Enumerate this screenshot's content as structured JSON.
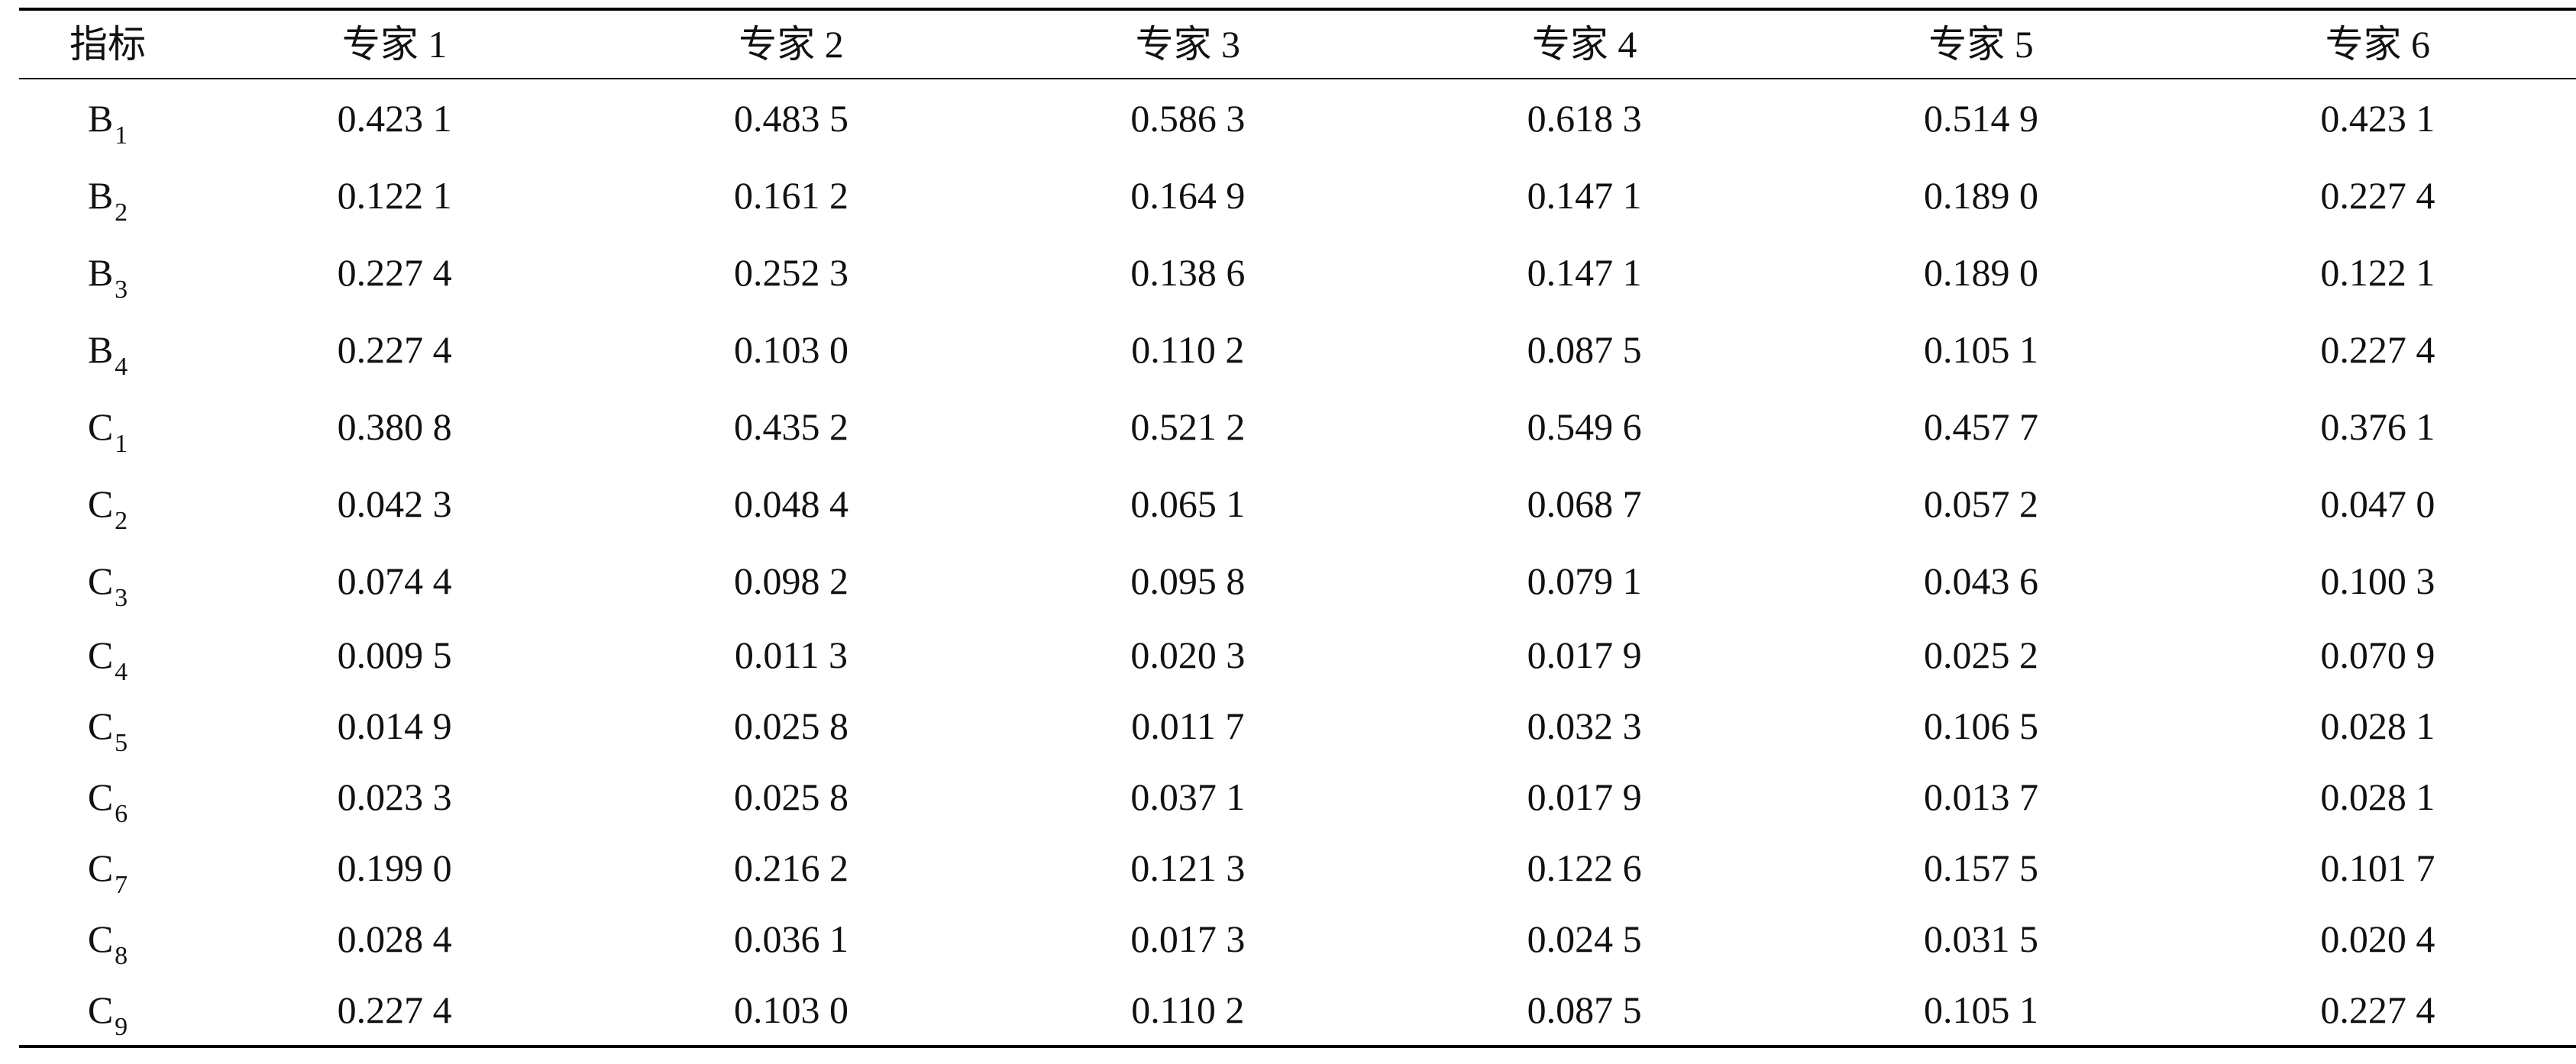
{
  "table": {
    "headers": [
      "指标",
      "专家 1",
      "专家 2",
      "专家 3",
      "专家 4",
      "专家 5",
      "专家 6"
    ],
    "rows": [
      {
        "indicator": "B",
        "sub": "1",
        "values": [
          "0.423 1",
          "0.483 5",
          "0.586 3",
          "0.618 3",
          "0.514 9",
          "0.423 1"
        ]
      },
      {
        "indicator": "B",
        "sub": "2",
        "values": [
          "0.122 1",
          "0.161 2",
          "0.164 9",
          "0.147 1",
          "0.189 0",
          "0.227 4"
        ]
      },
      {
        "indicator": "B",
        "sub": "3",
        "values": [
          "0.227 4",
          "0.252 3",
          "0.138 6",
          "0.147 1",
          "0.189 0",
          "0.122 1"
        ]
      },
      {
        "indicator": "B",
        "sub": "4",
        "values": [
          "0.227 4",
          "0.103 0",
          "0.110 2",
          "0.087 5",
          "0.105 1",
          "0.227 4"
        ]
      },
      {
        "indicator": "C",
        "sub": "1",
        "values": [
          "0.380 8",
          "0.435 2",
          "0.521 2",
          "0.549 6",
          "0.457 7",
          "0.376 1"
        ]
      },
      {
        "indicator": "C",
        "sub": "2",
        "values": [
          "0.042 3",
          "0.048 4",
          "0.065 1",
          "0.068 7",
          "0.057 2",
          "0.047 0"
        ]
      },
      {
        "indicator": "C",
        "sub": "3",
        "values": [
          "0.074 4",
          "0.098 2",
          "0.095 8",
          "0.079 1",
          "0.043 6",
          "0.100 3"
        ]
      },
      {
        "indicator": "C",
        "sub": "4",
        "values": [
          "0.009 5",
          "0.011 3",
          "0.020 3",
          "0.017 9",
          "0.025 2",
          "0.070 9"
        ]
      },
      {
        "indicator": "C",
        "sub": "5",
        "values": [
          "0.014 9",
          "0.025 8",
          "0.011 7",
          "0.032 3",
          "0.106 5",
          "0.028 1"
        ]
      },
      {
        "indicator": "C",
        "sub": "6",
        "values": [
          "0.023 3",
          "0.025 8",
          "0.037 1",
          "0.017 9",
          "0.013 7",
          "0.028 1"
        ]
      },
      {
        "indicator": "C",
        "sub": "7",
        "values": [
          "0.199 0",
          "0.216 2",
          "0.121 3",
          "0.122 6",
          "0.157 5",
          "0.101 7"
        ]
      },
      {
        "indicator": "C",
        "sub": "8",
        "values": [
          "0.028 4",
          "0.036 1",
          "0.017 3",
          "0.024 5",
          "0.031 5",
          "0.020 4"
        ]
      },
      {
        "indicator": "C",
        "sub": "9",
        "values": [
          "0.227 4",
          "0.103 0",
          "0.110 2",
          "0.087 5",
          "0.105 1",
          "0.227 4"
        ]
      }
    ]
  }
}
